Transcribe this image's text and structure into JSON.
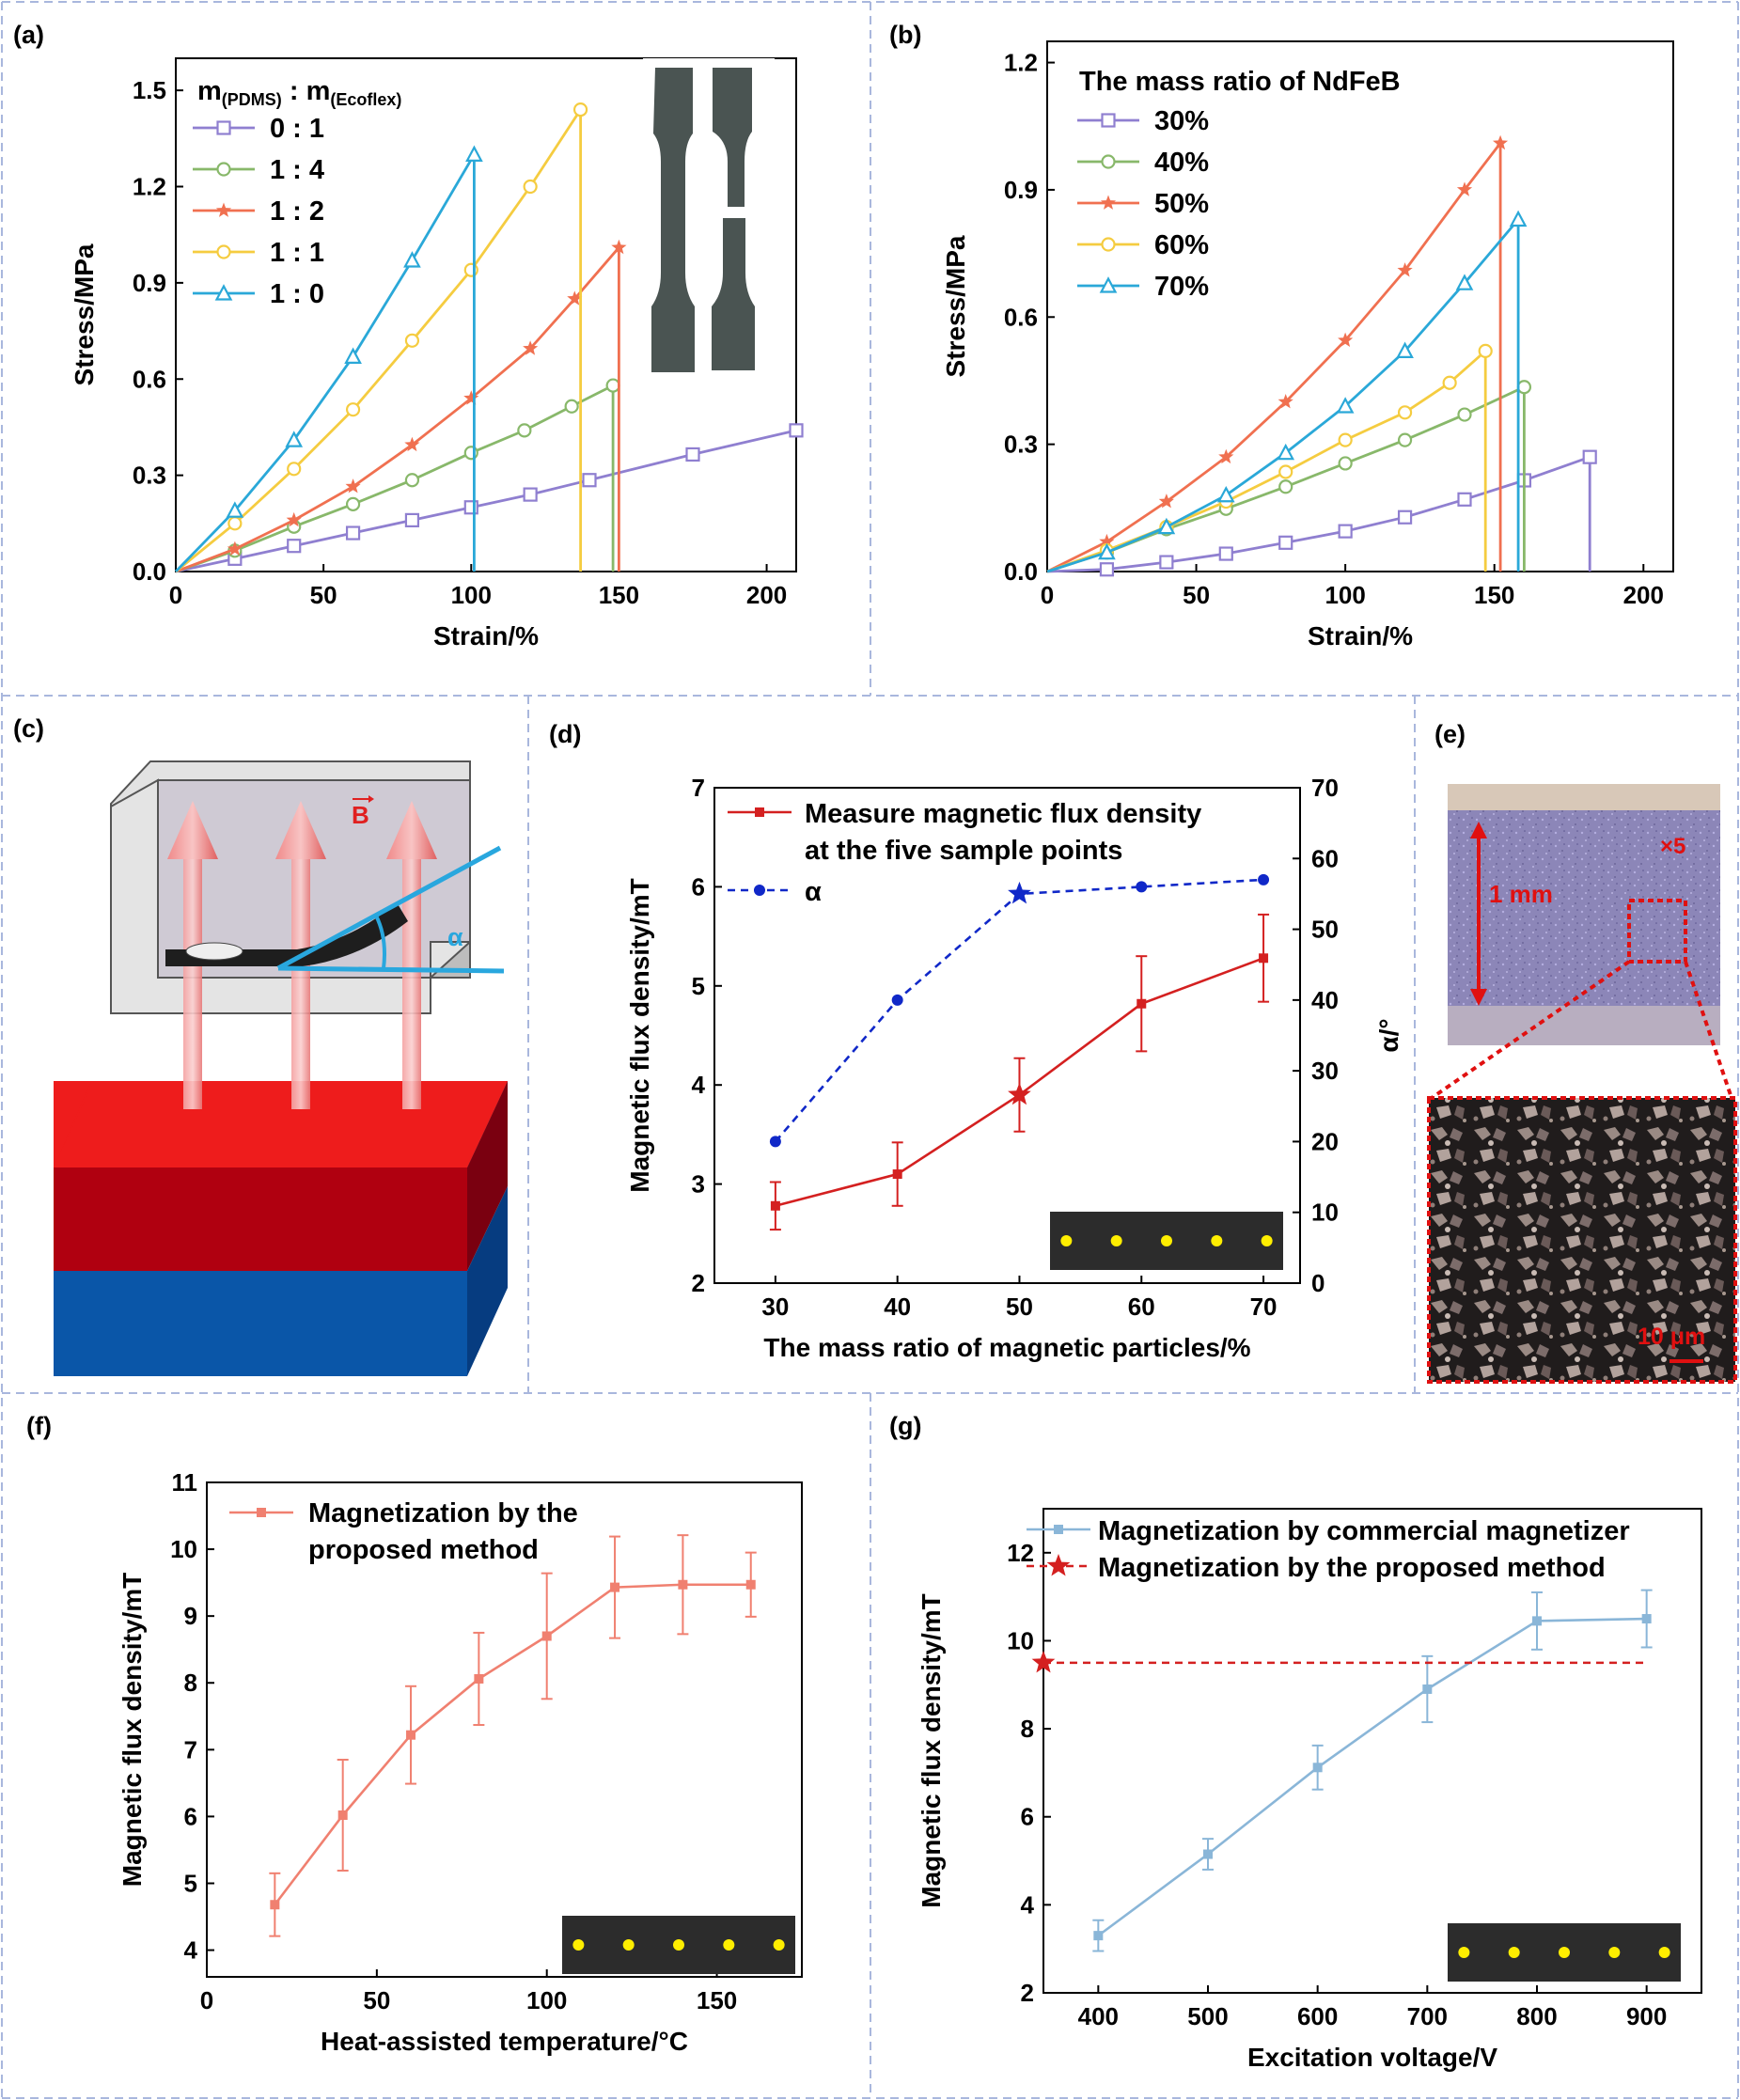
{
  "colors": {
    "purple": "#8f7fd0",
    "green": "#88b86a",
    "orange": "#f07050",
    "yellow": "#f5cc40",
    "cyan": "#2aa8d8",
    "red": "#d42020",
    "blue": "#1028c8",
    "pink": "#f08070",
    "lightblue": "#8ab6d8",
    "divider": "#a9b7dd"
  },
  "chart_data": [
    {
      "panel": "(a)",
      "type": "line",
      "xlabel": "Strain/%",
      "ylabel": "Stress/MPa",
      "xlim": [
        0,
        210
      ],
      "ylim": [
        0,
        1.6
      ],
      "xticks": [
        "0",
        "50",
        "100",
        "150",
        "200"
      ],
      "yticks": [
        "0.0",
        "0.3",
        "0.6",
        "0.9",
        "1.2",
        "1.5"
      ],
      "legend_title": "m(PDMS) : m(Ecoflex)",
      "legend_title_parts": {
        "m": "m",
        "pdms": "(PDMS)",
        "sep": " : m",
        "ecoflex": "(Ecoflex)"
      },
      "legend_placement": "top-left",
      "series": [
        {
          "name": "0 : 1",
          "color": "#8f7fd0",
          "marker": "square",
          "x": [
            0,
            20,
            40,
            60,
            80,
            100,
            120,
            140,
            175,
            210
          ],
          "y": [
            0,
            0.04,
            0.08,
            0.12,
            0.16,
            0.2,
            0.24,
            0.285,
            0.365,
            0.44
          ]
        },
        {
          "name": "1 : 4",
          "color": "#88b86a",
          "marker": "circle",
          "x": [
            0,
            20,
            40,
            60,
            80,
            100,
            118,
            134,
            148,
            148
          ],
          "y": [
            0,
            0.065,
            0.14,
            0.21,
            0.285,
            0.37,
            0.44,
            0.515,
            0.58,
            0
          ]
        },
        {
          "name": "1 : 2",
          "color": "#f07050",
          "marker": "star",
          "x": [
            0,
            20,
            40,
            60,
            80,
            100,
            120,
            135,
            150,
            150
          ],
          "y": [
            0,
            0.07,
            0.16,
            0.265,
            0.395,
            0.54,
            0.695,
            0.85,
            1.01,
            0
          ]
        },
        {
          "name": "1 : 1",
          "color": "#f5cc40",
          "marker": "circle",
          "x": [
            0,
            20,
            40,
            60,
            80,
            100,
            120,
            137,
            137
          ],
          "y": [
            0,
            0.15,
            0.32,
            0.505,
            0.72,
            0.94,
            1.2,
            1.44,
            0
          ]
        },
        {
          "name": "1 : 0",
          "color": "#2aa8d8",
          "marker": "triangle",
          "x": [
            0,
            20,
            40,
            60,
            80,
            101,
            101
          ],
          "y": [
            0,
            0.19,
            0.41,
            0.67,
            0.97,
            1.3,
            0
          ]
        }
      ]
    },
    {
      "panel": "(b)",
      "type": "line",
      "xlabel": "Strain/%",
      "ylabel": "Stress/MPa",
      "xlim": [
        0,
        210
      ],
      "ylim": [
        0,
        1.25
      ],
      "xticks": [
        "0",
        "50",
        "100",
        "150",
        "200"
      ],
      "yticks": [
        "0.0",
        "0.3",
        "0.6",
        "0.9",
        "1.2"
      ],
      "legend_title": "The mass ratio of NdFeB",
      "legend_placement": "top-left",
      "series": [
        {
          "name": "30%",
          "color": "#8f7fd0",
          "marker": "square",
          "x": [
            0,
            20,
            40,
            60,
            80,
            100,
            120,
            140,
            160,
            182,
            182
          ],
          "y": [
            0,
            0.005,
            0.022,
            0.042,
            0.068,
            0.095,
            0.128,
            0.17,
            0.215,
            0.27,
            0
          ]
        },
        {
          "name": "40%",
          "color": "#88b86a",
          "marker": "circle",
          "x": [
            0,
            20,
            40,
            60,
            80,
            100,
            120,
            140,
            160,
            160
          ],
          "y": [
            0,
            0.045,
            0.1,
            0.148,
            0.2,
            0.255,
            0.31,
            0.37,
            0.435,
            0
          ]
        },
        {
          "name": "50%",
          "color": "#f07050",
          "marker": "star",
          "x": [
            0,
            20,
            40,
            60,
            80,
            100,
            120,
            140,
            152,
            152
          ],
          "y": [
            0,
            0.07,
            0.165,
            0.27,
            0.4,
            0.545,
            0.71,
            0.9,
            1.01,
            0
          ]
        },
        {
          "name": "60%",
          "color": "#f5cc40",
          "marker": "circle",
          "x": [
            0,
            20,
            40,
            60,
            80,
            100,
            120,
            135,
            147,
            147
          ],
          "y": [
            0,
            0.05,
            0.105,
            0.165,
            0.235,
            0.31,
            0.375,
            0.445,
            0.52,
            0
          ]
        },
        {
          "name": "70%",
          "color": "#2aa8d8",
          "marker": "triangle",
          "x": [
            0,
            20,
            40,
            60,
            80,
            100,
            120,
            140,
            158,
            158
          ],
          "y": [
            0,
            0.045,
            0.105,
            0.18,
            0.28,
            0.39,
            0.52,
            0.68,
            0.83,
            0
          ]
        }
      ]
    },
    {
      "panel": "(d)",
      "type": "line",
      "xlabel": "The mass ratio of magnetic particles/%",
      "ylabel": "Magnetic flux density/mT",
      "ylabel_right": "α/°",
      "xlim": [
        25,
        73
      ],
      "ylim": [
        2,
        7
      ],
      "ylim_right": [
        0,
        70
      ],
      "x": [
        30,
        40,
        50,
        60,
        70
      ],
      "xticks": [
        "30",
        "40",
        "50",
        "60",
        "70"
      ],
      "yticks": [
        "2",
        "3",
        "4",
        "5",
        "6",
        "7"
      ],
      "yticks_right": [
        "0",
        "10",
        "20",
        "30",
        "40",
        "50",
        "60",
        "70"
      ],
      "legend_placement": "top-left",
      "series": [
        {
          "name": "Measure magnetic flux density",
          "name2": "at the five sample points",
          "axis": "left",
          "color": "#d42020",
          "values": [
            2.78,
            3.1,
            3.9,
            4.82,
            5.28
          ],
          "err": [
            0.24,
            0.32,
            0.37,
            0.48,
            0.44
          ]
        },
        {
          "name": "α",
          "axis": "right",
          "color": "#1028c8",
          "style": "dashed",
          "values": [
            20,
            40,
            55,
            56,
            57
          ]
        }
      ]
    },
    {
      "panel": "(f)",
      "type": "line",
      "xlabel": "Heat-assisted temperature/°C",
      "ylabel": "Magnetic flux density/mT",
      "xlim": [
        0,
        175
      ],
      "ylim": [
        3.6,
        11
      ],
      "x": [
        20,
        40,
        60,
        80,
        100,
        120,
        140,
        160
      ],
      "xticks": [
        "0",
        "50",
        "100",
        "150"
      ],
      "yticks": [
        "4",
        "5",
        "6",
        "7",
        "8",
        "9",
        "10",
        "11"
      ],
      "legend_placement": "top-left",
      "series": [
        {
          "name": "Magnetization by the",
          "name2": "proposed method",
          "color": "#f08070",
          "values": [
            4.68,
            6.02,
            7.22,
            8.06,
            8.7,
            9.43,
            9.47,
            9.47
          ],
          "err": [
            0.47,
            0.83,
            0.73,
            0.69,
            0.94,
            0.76,
            0.74,
            0.48
          ]
        }
      ]
    },
    {
      "panel": "(g)",
      "type": "line",
      "xlabel": "Excitation voltage/V",
      "ylabel": "Magnetic flux density/mT",
      "xlim": [
        350,
        950
      ],
      "ylim": [
        2,
        13
      ],
      "xticks": [
        "400",
        "500",
        "600",
        "700",
        "800",
        "900"
      ],
      "yticks": [
        "2",
        "4",
        "6",
        "8",
        "10",
        "12"
      ],
      "legend_placement": "top",
      "series": [
        {
          "name": "Magnetization by commercial magnetizer",
          "color": "#8ab6d8",
          "x": [
            400,
            500,
            600,
            700,
            800,
            900
          ],
          "values": [
            3.3,
            5.15,
            7.12,
            8.9,
            10.45,
            10.5
          ],
          "err": [
            0.35,
            0.35,
            0.5,
            0.75,
            0.65,
            0.65
          ]
        },
        {
          "name": "Magnetization by the proposed method",
          "color": "#d42020",
          "style": "dashed",
          "x": [
            350,
            900
          ],
          "values": [
            9.5,
            9.5
          ]
        }
      ]
    }
  ],
  "panel_labels": {
    "a": "(a)",
    "b": "(b)",
    "c": "(c)",
    "d": "(d)",
    "e": "(e)",
    "f": "(f)",
    "g": "(g)"
  },
  "diagram_c": {
    "field_label": "B",
    "angle_label": "α"
  },
  "micrograph_e": {
    "thickness_label": "1 mm",
    "magnification": "×5",
    "scale_label": "10 μm"
  }
}
